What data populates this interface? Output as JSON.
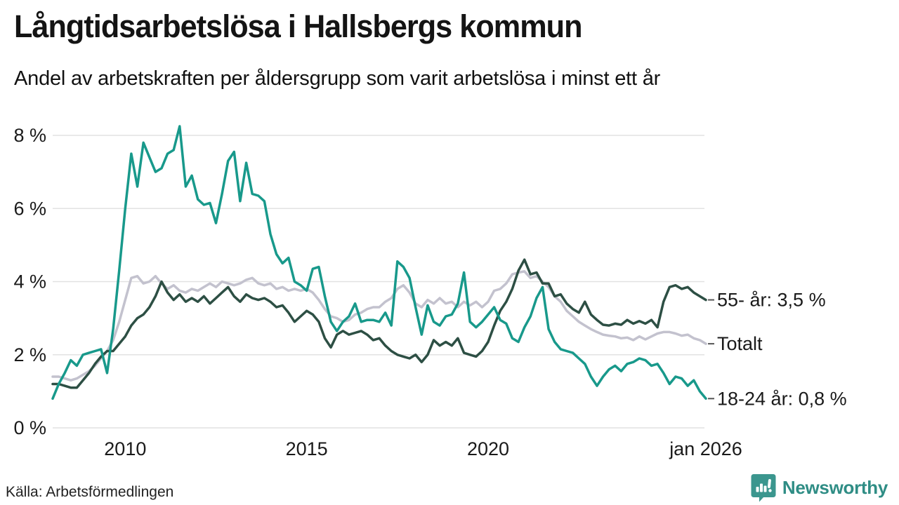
{
  "header": {
    "title": "Långtidsarbetslösa i Hallsbergs kommun",
    "subtitle": "Andel av arbetskraften per åldersgrupp som varit arbetslösa i minst ett år"
  },
  "footer": {
    "source": "Källa: Arbetsförmedlingen",
    "brand": "Newsworthy"
  },
  "colors": {
    "young": "#18998b",
    "old": "#2d4f44",
    "total": "#c3c2ce",
    "grid": "#e2e2e2",
    "text": "#1a1a1a",
    "connector": "#555555",
    "brand_icon": "#3b968e",
    "brand_text": "#2f8d85"
  },
  "chart_data": {
    "type": "line",
    "title": "Långtidsarbetslösa i Hallsbergs kommun",
    "subtitle": "Andel av arbetskraften per åldersgrupp som varit arbetslösa i minst ett år",
    "unit": "%",
    "grid": true,
    "legend_position": "right-end-labels",
    "x_start": 2008.0,
    "x_end": 2026.0,
    "x_step": 0.16667,
    "x_ticks": [
      {
        "value": 2010,
        "label": "2010"
      },
      {
        "value": 2015,
        "label": "2015"
      },
      {
        "value": 2020,
        "label": "2020"
      },
      {
        "value": 2026,
        "label": "jan 2026"
      }
    ],
    "y_ticks": [
      {
        "value": 0,
        "label": "0 %"
      },
      {
        "value": 2,
        "label": "2 %"
      },
      {
        "value": 4,
        "label": "4 %"
      },
      {
        "value": 6,
        "label": "6 %"
      },
      {
        "value": 8,
        "label": "8 %"
      }
    ],
    "ylim": [
      0,
      8.6
    ],
    "series": [
      {
        "name": "Totalt",
        "end_label": "Totalt",
        "color": "#c3c2ce",
        "values": [
          1.4,
          1.4,
          1.35,
          1.3,
          1.35,
          1.45,
          1.55,
          1.7,
          1.9,
          2.1,
          2.4,
          2.9,
          3.5,
          4.1,
          4.15,
          3.95,
          4.0,
          4.15,
          3.95,
          3.8,
          3.9,
          3.75,
          3.7,
          3.8,
          3.75,
          3.85,
          3.95,
          3.85,
          4.0,
          3.95,
          3.9,
          3.95,
          4.05,
          4.1,
          3.95,
          3.9,
          3.95,
          3.8,
          3.85,
          3.75,
          3.8,
          3.75,
          3.8,
          3.7,
          3.5,
          3.25,
          3.05,
          3.0,
          2.9,
          2.95,
          3.1,
          3.15,
          3.25,
          3.3,
          3.3,
          3.45,
          3.55,
          3.8,
          3.9,
          3.7,
          3.4,
          3.3,
          3.5,
          3.4,
          3.55,
          3.4,
          3.45,
          3.3,
          3.45,
          3.35,
          3.45,
          3.3,
          3.45,
          3.75,
          3.8,
          3.95,
          4.2,
          4.25,
          4.28,
          4.1,
          4.15,
          4.0,
          3.85,
          3.6,
          3.45,
          3.2,
          3.05,
          2.9,
          2.8,
          2.7,
          2.62,
          2.55,
          2.52,
          2.5,
          2.45,
          2.47,
          2.4,
          2.5,
          2.42,
          2.5,
          2.58,
          2.62,
          2.62,
          2.58,
          2.52,
          2.55,
          2.45,
          2.4,
          2.3
        ]
      },
      {
        "name": "55- år",
        "end_label": "55- år: 3,5 %",
        "color": "#2d4f44",
        "values": [
          1.2,
          1.2,
          1.15,
          1.1,
          1.1,
          1.3,
          1.5,
          1.75,
          1.95,
          2.1,
          2.1,
          2.3,
          2.5,
          2.8,
          3.0,
          3.1,
          3.3,
          3.6,
          4.0,
          3.7,
          3.5,
          3.65,
          3.45,
          3.55,
          3.45,
          3.6,
          3.4,
          3.55,
          3.7,
          3.85,
          3.6,
          3.45,
          3.65,
          3.55,
          3.5,
          3.55,
          3.45,
          3.3,
          3.35,
          3.15,
          2.9,
          3.05,
          3.2,
          3.1,
          2.9,
          2.45,
          2.2,
          2.55,
          2.65,
          2.55,
          2.6,
          2.65,
          2.55,
          2.4,
          2.45,
          2.25,
          2.1,
          2.0,
          1.95,
          1.9,
          2.0,
          1.8,
          2.0,
          2.4,
          2.25,
          2.35,
          2.25,
          2.45,
          2.05,
          2.0,
          1.95,
          2.1,
          2.35,
          2.8,
          3.2,
          3.45,
          3.8,
          4.3,
          4.6,
          4.2,
          4.25,
          3.95,
          3.95,
          3.6,
          3.65,
          3.4,
          3.25,
          3.15,
          3.45,
          3.1,
          2.95,
          2.82,
          2.8,
          2.85,
          2.82,
          2.95,
          2.85,
          2.92,
          2.85,
          2.95,
          2.75,
          3.45,
          3.85,
          3.9,
          3.8,
          3.85,
          3.7,
          3.6,
          3.5
        ]
      },
      {
        "name": "18-24 år",
        "end_label": "18-24 år: 0,8 %",
        "color": "#18998b",
        "values": [
          0.8,
          1.2,
          1.5,
          1.85,
          1.7,
          2.0,
          2.05,
          2.1,
          2.15,
          1.5,
          2.7,
          4.3,
          6.0,
          7.5,
          6.6,
          7.8,
          7.4,
          7.0,
          7.1,
          7.5,
          7.6,
          8.25,
          6.6,
          6.9,
          6.25,
          6.1,
          6.15,
          5.6,
          6.4,
          7.3,
          7.55,
          6.2,
          7.25,
          6.4,
          6.35,
          6.2,
          5.3,
          4.75,
          4.5,
          4.65,
          4.0,
          3.9,
          3.75,
          4.35,
          4.4,
          3.6,
          2.9,
          2.65,
          2.9,
          3.05,
          3.4,
          2.9,
          2.95,
          2.95,
          2.9,
          3.15,
          2.8,
          4.55,
          4.4,
          4.1,
          3.3,
          2.55,
          3.35,
          2.9,
          2.8,
          3.05,
          3.1,
          3.4,
          4.25,
          2.9,
          2.75,
          2.9,
          3.1,
          3.3,
          2.95,
          2.85,
          2.45,
          2.35,
          2.75,
          3.05,
          3.55,
          3.85,
          2.7,
          2.35,
          2.15,
          2.1,
          2.05,
          1.9,
          1.75,
          1.4,
          1.15,
          1.4,
          1.6,
          1.7,
          1.55,
          1.75,
          1.8,
          1.9,
          1.85,
          1.7,
          1.75,
          1.5,
          1.2,
          1.4,
          1.35,
          1.15,
          1.3,
          1.0,
          0.8
        ]
      }
    ]
  }
}
